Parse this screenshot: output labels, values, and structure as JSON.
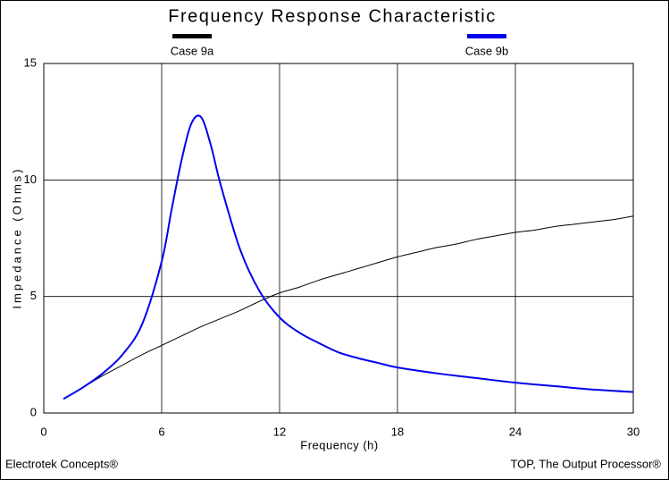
{
  "chart_data": {
    "type": "line",
    "title": "Frequency Response Characteristic",
    "xlabel": "Frequency (h)",
    "ylabel": "Impedance (Ohms)",
    "xlim": [
      0,
      30
    ],
    "ylim": [
      0,
      15
    ],
    "xticks": [
      0,
      6,
      12,
      18,
      24,
      30
    ],
    "yticks": [
      0,
      5,
      10,
      15
    ],
    "grid": true,
    "legend": "top",
    "series": [
      {
        "name": "Case 9a",
        "color": "#000000",
        "x": [
          1,
          2,
          3,
          4,
          5,
          6,
          7,
          8,
          9,
          10,
          11,
          12,
          13,
          14,
          15,
          16,
          17,
          18,
          19,
          20,
          21,
          22,
          23,
          24,
          25,
          26,
          27,
          28,
          29,
          30
        ],
        "values": [
          0.6,
          1.1,
          1.6,
          2.05,
          2.5,
          2.9,
          3.3,
          3.7,
          4.05,
          4.4,
          4.8,
          5.15,
          5.4,
          5.7,
          5.95,
          6.2,
          6.45,
          6.7,
          6.9,
          7.1,
          7.25,
          7.45,
          7.6,
          7.75,
          7.85,
          8.0,
          8.1,
          8.2,
          8.3,
          8.45
        ]
      },
      {
        "name": "Case 9b",
        "color": "#0000ee",
        "x": [
          1,
          2,
          3,
          4,
          5,
          6,
          6.5,
          7,
          7.5,
          8,
          8.5,
          9,
          10,
          11,
          12,
          13,
          14,
          15,
          16,
          17,
          18,
          20,
          22,
          24,
          26,
          28,
          30
        ],
        "values": [
          0.6,
          1.1,
          1.7,
          2.5,
          3.8,
          6.5,
          8.7,
          10.8,
          12.4,
          12.7,
          11.5,
          9.8,
          7.0,
          5.2,
          4.1,
          3.45,
          3.0,
          2.6,
          2.35,
          2.15,
          1.95,
          1.7,
          1.5,
          1.3,
          1.15,
          1.0,
          0.9
        ]
      }
    ],
    "footer_left": "Electrotek Concepts®",
    "footer_right": "TOP, The Output Processor®"
  }
}
